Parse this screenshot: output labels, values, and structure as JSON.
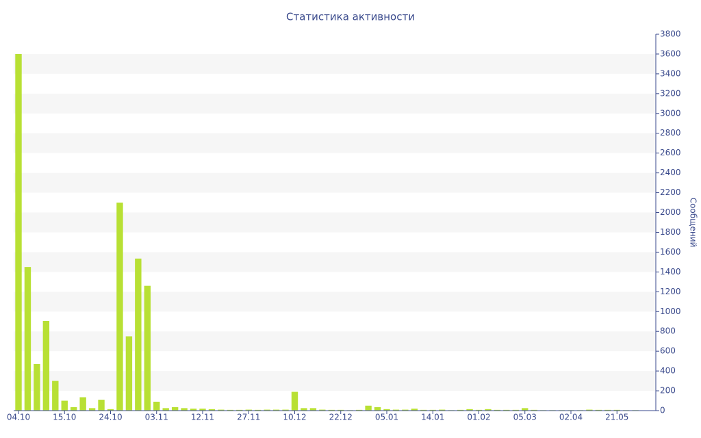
{
  "chart_data": {
    "type": "bar",
    "title": "Статистика активности",
    "y_axis_label": "Сообщений",
    "categories": [
      "04.10",
      null,
      null,
      null,
      null,
      "15.10",
      null,
      null,
      null,
      null,
      "24.10",
      null,
      null,
      null,
      null,
      "03.11",
      null,
      null,
      null,
      null,
      "12.11",
      null,
      null,
      null,
      null,
      "27.11",
      null,
      null,
      null,
      null,
      "10.12",
      null,
      null,
      null,
      null,
      "22.12",
      null,
      null,
      null,
      null,
      "05.01",
      null,
      null,
      null,
      null,
      "14.01",
      null,
      null,
      null,
      null,
      "01.02",
      null,
      null,
      null,
      null,
      "05.03",
      null,
      null,
      null,
      null,
      "02.04",
      null,
      null,
      null,
      null,
      "21.05",
      null,
      null
    ],
    "values": [
      3600,
      1450,
      470,
      905,
      300,
      100,
      35,
      135,
      25,
      110,
      15,
      2100,
      750,
      1535,
      1260,
      90,
      25,
      35,
      25,
      20,
      20,
      15,
      10,
      8,
      8,
      10,
      8,
      10,
      10,
      10,
      190,
      25,
      25,
      10,
      8,
      8,
      5,
      8,
      50,
      35,
      15,
      10,
      10,
      20,
      8,
      8,
      10,
      5,
      8,
      15,
      8,
      15,
      8,
      8,
      8,
      25,
      8,
      5,
      5,
      5,
      5,
      5,
      10,
      8,
      8,
      8,
      5,
      5
    ],
    "color": "#b8e034",
    "ylim": [
      0,
      3800
    ],
    "yticks": [
      0,
      200,
      400,
      600,
      800,
      1000,
      1200,
      1400,
      1600,
      1800,
      2000,
      2200,
      2400,
      2600,
      2800,
      3000,
      3200,
      3400,
      3600,
      3800
    ],
    "grid_bands": true,
    "y_axis_side": "right"
  }
}
